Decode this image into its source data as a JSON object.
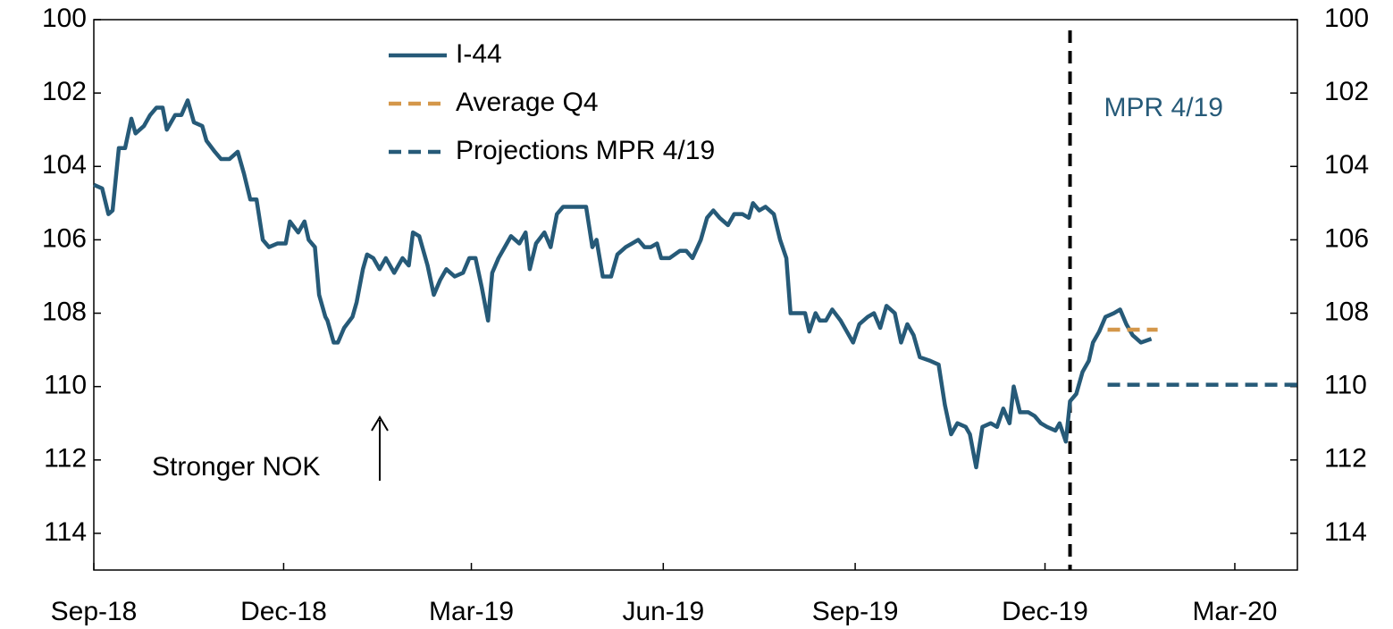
{
  "chart_data": {
    "type": "line",
    "xlim": [
      0,
      577
    ],
    "xticks": [
      {
        "value": 0,
        "label": "Sep-18"
      },
      {
        "value": 91,
        "label": "Dec-18"
      },
      {
        "value": 181,
        "label": "Mar-19"
      },
      {
        "value": 273,
        "label": "Jun-19"
      },
      {
        "value": 365,
        "label": "Sep-19"
      },
      {
        "value": 456,
        "label": "Dec-19"
      },
      {
        "value": 547,
        "label": "Mar-20"
      }
    ],
    "ylim": [
      115,
      100
    ],
    "yticks": [
      100,
      102,
      104,
      106,
      108,
      110,
      112,
      114
    ],
    "y2lim": [
      115,
      100
    ],
    "y2ticks": [
      100,
      102,
      104,
      106,
      108,
      110,
      112,
      114
    ],
    "legend": "upper center",
    "series": [
      {
        "name": "I-44",
        "color": "#265a78",
        "style": "solid",
        "x": [
          0,
          4,
          7,
          9,
          12,
          15,
          18,
          20,
          24,
          27,
          30,
          33,
          35,
          39,
          42,
          45,
          48,
          52,
          54,
          58,
          61,
          65,
          69,
          72,
          75,
          78,
          81,
          84,
          88,
          92,
          94,
          98,
          101,
          103,
          106,
          108,
          111,
          112,
          115,
          117,
          120,
          124,
          126,
          129,
          131,
          134,
          137,
          140,
          144,
          148,
          151,
          153,
          156,
          160,
          163,
          166,
          169,
          173,
          177,
          180,
          183,
          186,
          189,
          191,
          194,
          197,
          200,
          204,
          207,
          209,
          212,
          216,
          219,
          222,
          225,
          231,
          236,
          239,
          241,
          244,
          248,
          251,
          255,
          258,
          261,
          264,
          267,
          270,
          272,
          276,
          281,
          284,
          287,
          291,
          294,
          297,
          300,
          304,
          307,
          311,
          314,
          316,
          319,
          322,
          326,
          329,
          332,
          334,
          338,
          341,
          343,
          346,
          348,
          351,
          354,
          358,
          361,
          364,
          367,
          371,
          374,
          377,
          380,
          384,
          387,
          390,
          393,
          396,
          401,
          405,
          408,
          411,
          414,
          418,
          420,
          423,
          426,
          430,
          433,
          436,
          439,
          441,
          444,
          448,
          451,
          454,
          457,
          461,
          463,
          466,
          468,
          471,
          474,
          477,
          479,
          482,
          485,
          489,
          492,
          495,
          498,
          502,
          507
        ],
        "values": [
          104.5,
          104.6,
          105.3,
          105.2,
          103.5,
          103.5,
          102.7,
          103.1,
          102.9,
          102.6,
          102.4,
          102.4,
          103.0,
          102.6,
          102.6,
          102.2,
          102.8,
          102.9,
          103.3,
          103.6,
          103.8,
          103.8,
          103.6,
          104.2,
          104.9,
          104.9,
          106.0,
          106.2,
          106.1,
          106.1,
          105.5,
          105.8,
          105.5,
          106.0,
          106.2,
          107.5,
          108.1,
          108.2,
          108.8,
          108.8,
          108.4,
          108.1,
          107.7,
          106.8,
          106.4,
          106.5,
          106.8,
          106.5,
          106.9,
          106.5,
          106.7,
          105.8,
          105.9,
          106.7,
          107.5,
          107.1,
          106.8,
          107.0,
          106.9,
          106.5,
          106.5,
          107.3,
          108.2,
          106.9,
          106.5,
          106.2,
          105.9,
          106.1,
          105.8,
          106.8,
          106.1,
          105.8,
          106.2,
          105.3,
          105.1,
          105.1,
          105.1,
          106.2,
          106.0,
          107.0,
          107.0,
          106.4,
          106.2,
          106.1,
          106.0,
          106.2,
          106.2,
          106.1,
          106.5,
          106.5,
          106.3,
          106.3,
          106.5,
          106.0,
          105.4,
          105.2,
          105.4,
          105.6,
          105.3,
          105.3,
          105.4,
          105.0,
          105.2,
          105.1,
          105.3,
          106.0,
          106.5,
          108.0,
          108.0,
          108.0,
          108.5,
          108.0,
          108.2,
          108.2,
          107.9,
          108.2,
          108.5,
          108.8,
          108.3,
          108.1,
          108.0,
          108.4,
          107.8,
          108.0,
          108.8,
          108.3,
          108.6,
          109.2,
          109.3,
          109.4,
          110.5,
          111.3,
          111.0,
          111.1,
          111.3,
          112.2,
          111.1,
          111.0,
          111.1,
          110.6,
          111.0,
          110.0,
          110.7,
          110.7,
          110.8,
          111.0,
          111.1,
          111.2,
          111.0,
          111.5,
          110.4,
          110.2,
          109.6,
          109.3,
          108.8,
          108.5,
          108.1,
          108.0,
          107.9,
          108.3,
          108.6,
          108.8,
          108.7
        ]
      },
      {
        "name": "Average Q4",
        "color": "#d4974a",
        "style": "dashed",
        "x": [
          486,
          510
        ],
        "values": [
          108.45,
          108.45
        ]
      },
      {
        "name": "Projections MPR 4/19",
        "color": "#265a78",
        "style": "dashed",
        "x": [
          486,
          577
        ],
        "values": [
          109.95,
          109.95
        ]
      }
    ],
    "vlines": [
      {
        "x": 468,
        "label": "MPR 4/19"
      }
    ],
    "annotations": [
      {
        "text": "Stronger NOK",
        "arrow": "up"
      }
    ]
  }
}
